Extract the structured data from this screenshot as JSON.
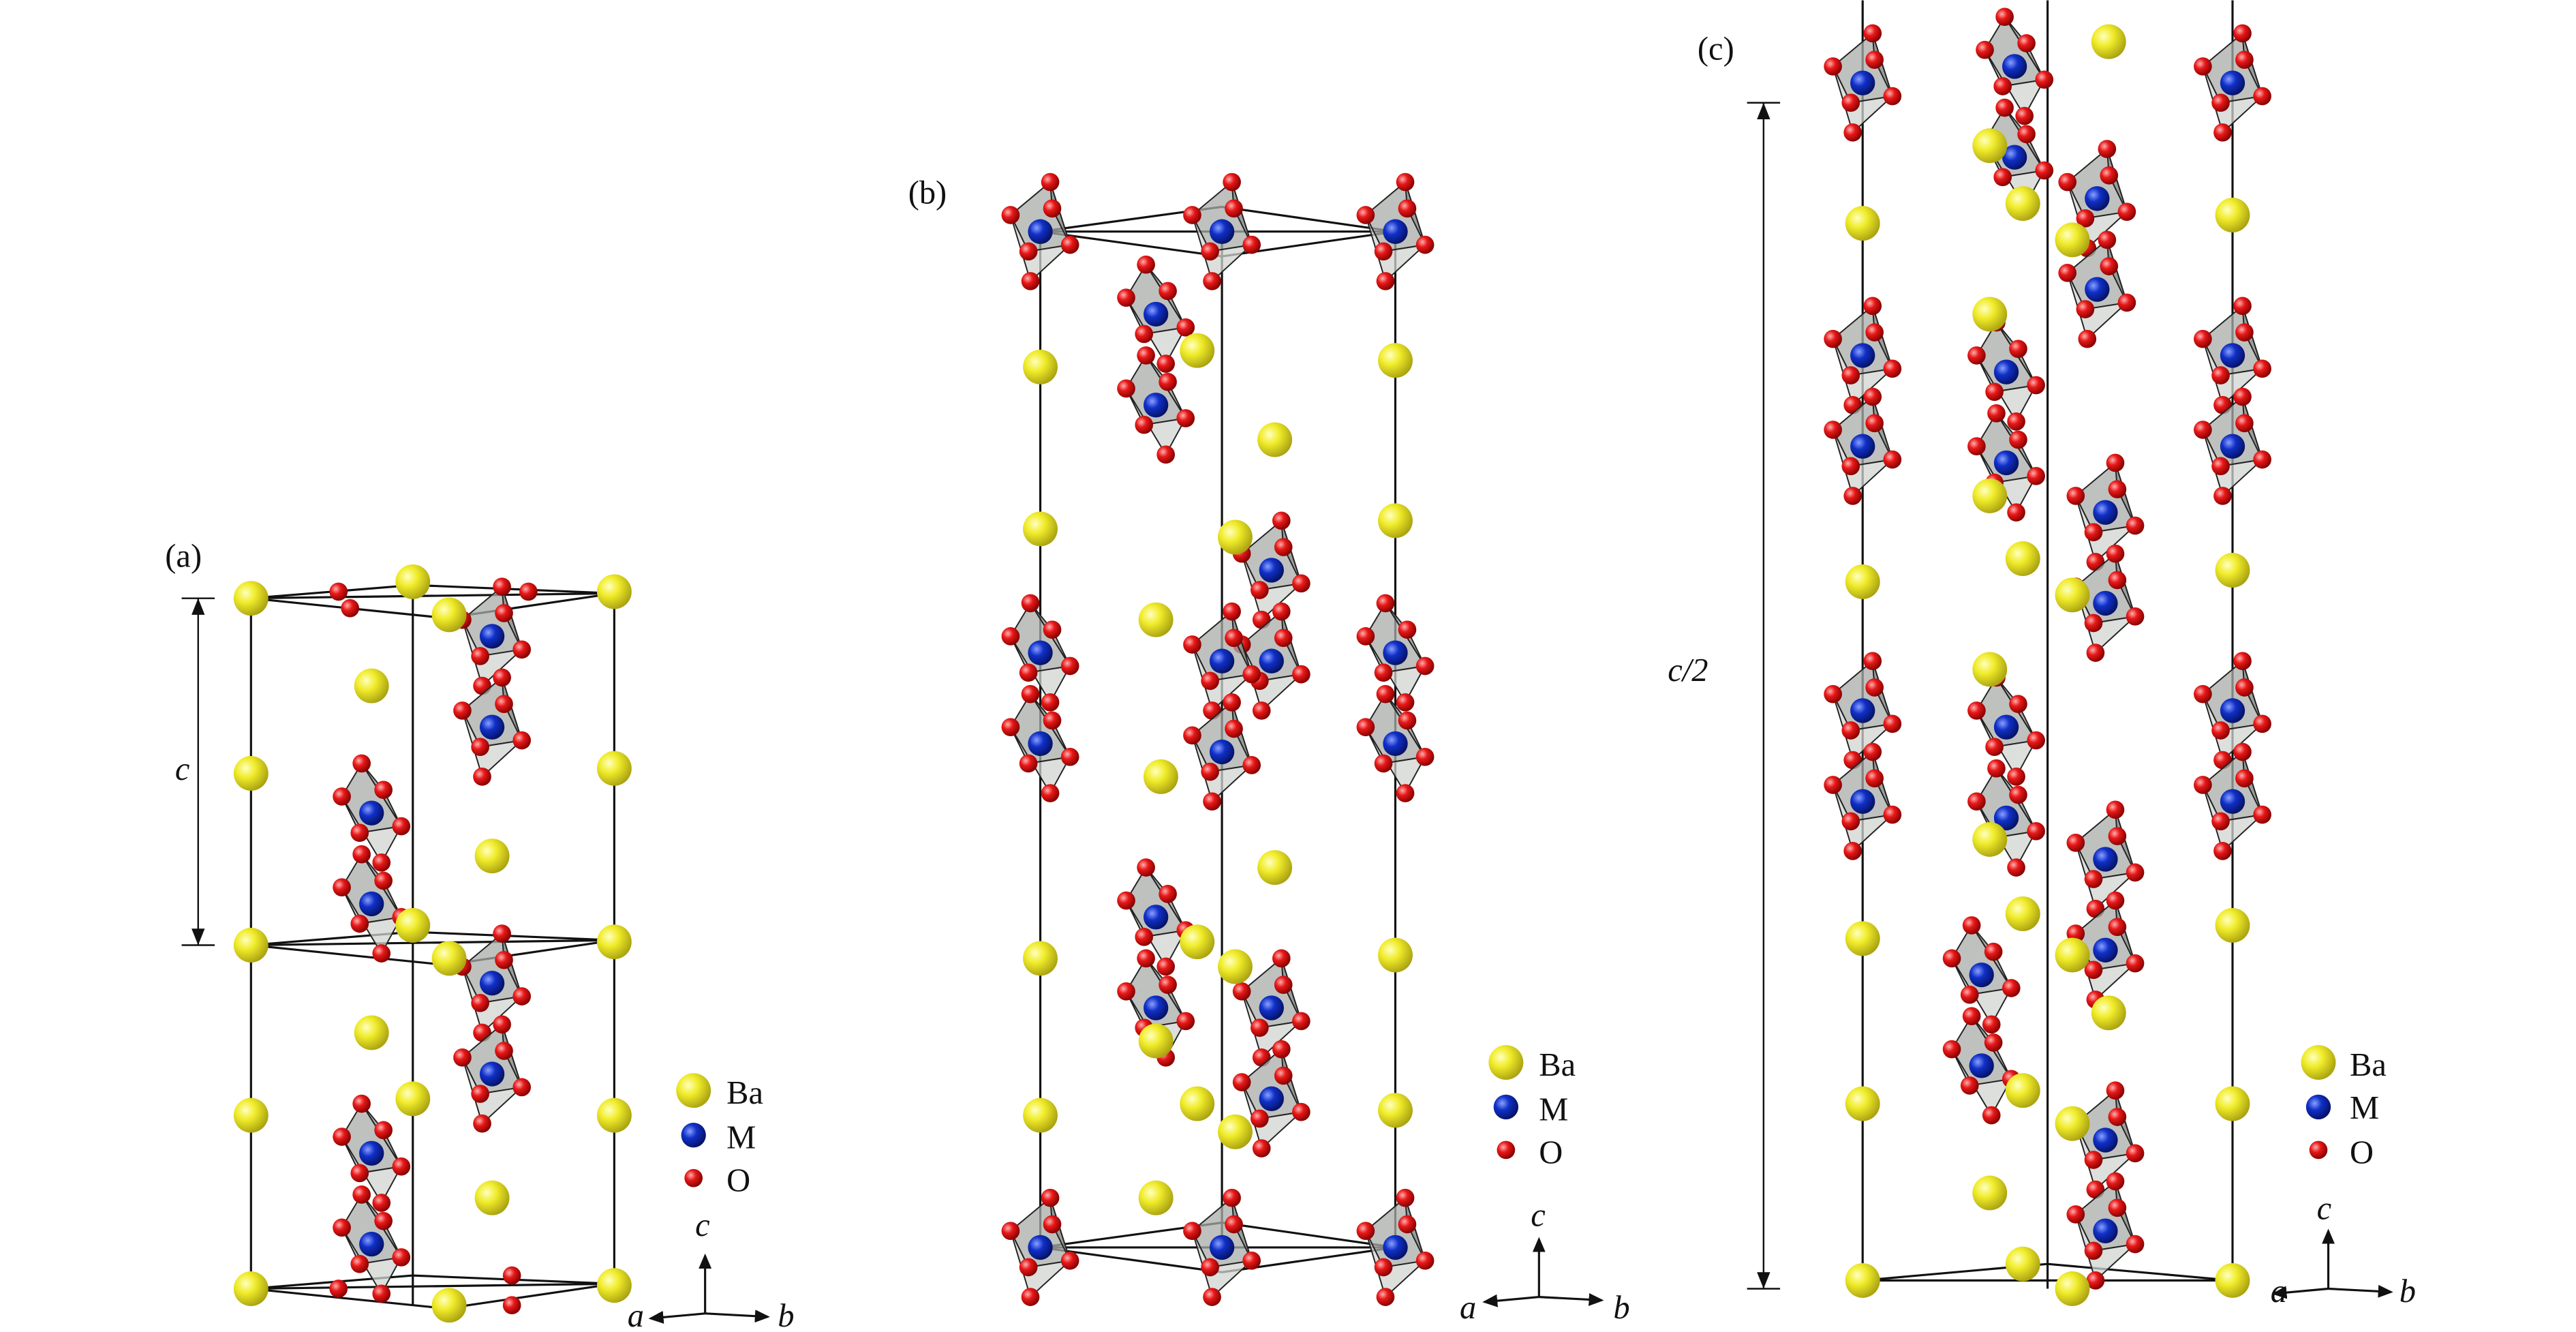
{
  "panels": [
    {
      "label": "(a)",
      "dimension_label": "c",
      "legend": [
        "Ba",
        "M",
        "O"
      ],
      "axes": {
        "a": "a",
        "b": "b",
        "c": "c"
      }
    },
    {
      "label": "(b)",
      "legend": [
        "Ba",
        "M",
        "O"
      ],
      "axes": {
        "a": "a",
        "b": "b",
        "c": "c"
      }
    },
    {
      "label": "(c)",
      "dimension_label": "c/2",
      "legend": [
        "Ba",
        "M",
        "O"
      ],
      "axes": {
        "a": "a",
        "b": "b",
        "c": "c"
      }
    }
  ],
  "colors": {
    "Ba": "#f0ec2a",
    "M": "#1030c8",
    "O": "#e81818",
    "octahedron": "#a8aca8"
  }
}
